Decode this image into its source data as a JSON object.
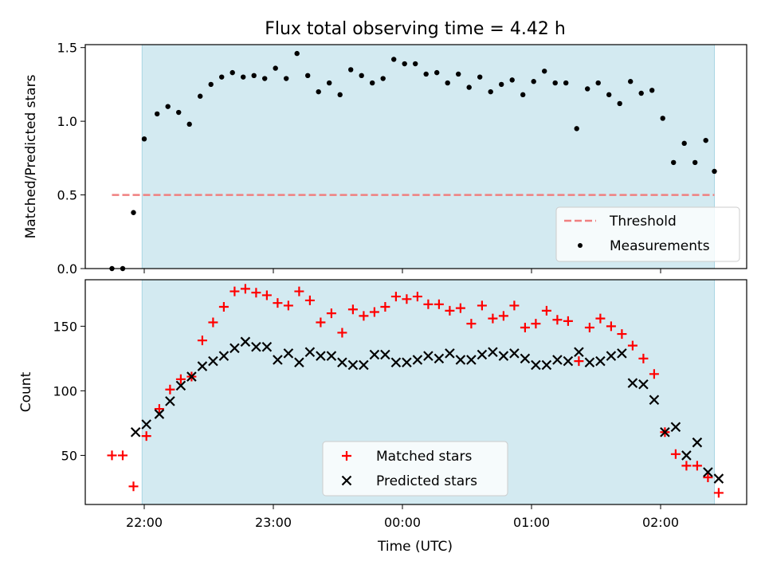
{
  "title": "Flux total observing time = 4.42 h",
  "chart_data": [
    {
      "type": "scatter",
      "ylabel": "Matched/Predicted stars",
      "ylim": [
        0,
        1.52
      ],
      "yticks": [
        "0.0",
        "0.5",
        "1.0",
        "1.5"
      ],
      "shaded_span": [
        "21:59",
        "02:25"
      ],
      "threshold": {
        "name": "Threshold",
        "value": 0.5,
        "x_start": "21:45",
        "x_end": "02:25",
        "color": "#f08080"
      },
      "legend_position": "lower right",
      "series": [
        {
          "name": "Measurements",
          "marker": "dot",
          "color": "#000000",
          "x": [
            "21:45",
            "21:50",
            "21:55",
            "22:00",
            "22:06",
            "22:11",
            "22:16",
            "22:21",
            "22:26",
            "22:31",
            "22:36",
            "22:41",
            "22:46",
            "22:51",
            "22:56",
            "23:01",
            "23:06",
            "23:11",
            "23:16",
            "23:21",
            "23:26",
            "23:31",
            "23:36",
            "23:41",
            "23:46",
            "23:51",
            "23:56",
            "00:01",
            "00:06",
            "00:11",
            "00:16",
            "00:21",
            "00:26",
            "00:31",
            "00:36",
            "00:41",
            "00:46",
            "00:51",
            "00:56",
            "01:01",
            "01:06",
            "01:11",
            "01:16",
            "01:21",
            "01:26",
            "01:31",
            "01:36",
            "01:41",
            "01:46",
            "01:51",
            "01:56",
            "02:01",
            "02:06",
            "02:11",
            "02:16",
            "02:21",
            "02:25"
          ],
          "y": [
            0.0,
            0.0,
            0.38,
            0.88,
            1.05,
            1.1,
            1.06,
            0.98,
            1.17,
            1.25,
            1.3,
            1.33,
            1.3,
            1.31,
            1.29,
            1.36,
            1.29,
            1.46,
            1.31,
            1.2,
            1.26,
            1.18,
            1.35,
            1.31,
            1.26,
            1.29,
            1.42,
            1.39,
            1.39,
            1.32,
            1.33,
            1.26,
            1.32,
            1.23,
            1.3,
            1.2,
            1.25,
            1.28,
            1.18,
            1.27,
            1.34,
            1.26,
            1.26,
            0.95,
            1.22,
            1.26,
            1.18,
            1.12,
            1.27,
            1.19,
            1.21,
            1.02,
            0.72,
            0.85,
            0.72,
            0.87,
            0.66
          ]
        }
      ]
    },
    {
      "type": "scatter",
      "xlabel": "Time (UTC)",
      "ylabel": "Count",
      "ylim": [
        12,
        186
      ],
      "yticks": [
        "50",
        "100",
        "150"
      ],
      "xticks": [
        "22:00",
        "23:00",
        "00:00",
        "01:00",
        "02:00"
      ],
      "shaded_span": [
        "21:59",
        "02:25"
      ],
      "legend_position": "lower center",
      "series": [
        {
          "name": "Matched stars",
          "marker": "plus",
          "color": "#ff0000",
          "x": [
            "21:45",
            "21:50",
            "21:55",
            "22:01",
            "22:07",
            "22:12",
            "22:17",
            "22:22",
            "22:27",
            "22:32",
            "22:37",
            "22:42",
            "22:47",
            "22:52",
            "22:57",
            "23:02",
            "23:07",
            "23:12",
            "23:17",
            "23:22",
            "23:27",
            "23:32",
            "23:37",
            "23:42",
            "23:47",
            "23:52",
            "23:57",
            "00:02",
            "00:07",
            "00:12",
            "00:17",
            "00:22",
            "00:27",
            "00:32",
            "00:37",
            "00:42",
            "00:47",
            "00:52",
            "00:57",
            "01:02",
            "01:07",
            "01:12",
            "01:17",
            "01:22",
            "01:27",
            "01:32",
            "01:37",
            "01:42",
            "01:47",
            "01:52",
            "01:57",
            "02:02",
            "02:07",
            "02:12",
            "02:17",
            "02:22",
            "02:27"
          ],
          "y": [
            50,
            50,
            26,
            65,
            86,
            101,
            109,
            111,
            139,
            153,
            165,
            177,
            179,
            176,
            174,
            168,
            166,
            177,
            170,
            153,
            160,
            145,
            163,
            158,
            161,
            165,
            173,
            171,
            173,
            167,
            167,
            162,
            164,
            152,
            166,
            156,
            158,
            166,
            149,
            152,
            162,
            155,
            154,
            123,
            149,
            156,
            150,
            144,
            135,
            125,
            113,
            68,
            51,
            42,
            42,
            33,
            21
          ]
        },
        {
          "name": "Predicted stars",
          "marker": "x",
          "color": "#000000",
          "x": [
            "21:56",
            "22:01",
            "22:07",
            "22:12",
            "22:17",
            "22:22",
            "22:27",
            "22:32",
            "22:37",
            "22:42",
            "22:47",
            "22:52",
            "22:57",
            "23:02",
            "23:07",
            "23:12",
            "23:17",
            "23:22",
            "23:27",
            "23:32",
            "23:37",
            "23:42",
            "23:47",
            "23:52",
            "23:57",
            "00:02",
            "00:07",
            "00:12",
            "00:17",
            "00:22",
            "00:27",
            "00:32",
            "00:37",
            "00:42",
            "00:47",
            "00:52",
            "00:57",
            "01:02",
            "01:07",
            "01:12",
            "01:17",
            "01:22",
            "01:27",
            "01:32",
            "01:37",
            "01:42",
            "01:47",
            "01:52",
            "01:57",
            "02:02",
            "02:07",
            "02:12",
            "02:17",
            "02:22",
            "02:27"
          ],
          "y": [
            68,
            74,
            82,
            92,
            104,
            111,
            119,
            123,
            127,
            133,
            138,
            134,
            134,
            124,
            129,
            122,
            130,
            127,
            127,
            122,
            120,
            120,
            128,
            128,
            122,
            122,
            124,
            127,
            125,
            129,
            124,
            124,
            128,
            130,
            127,
            129,
            125,
            120,
            120,
            124,
            123,
            130,
            122,
            123,
            127,
            129,
            106,
            105,
            93,
            68,
            72,
            50,
            60,
            37,
            32
          ]
        }
      ]
    }
  ]
}
